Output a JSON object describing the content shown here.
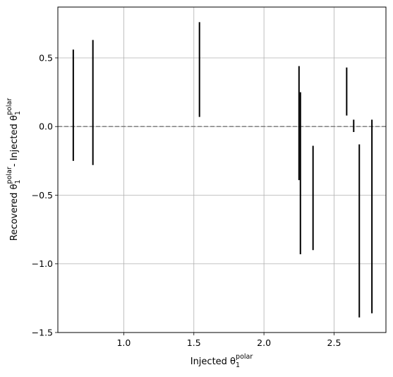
{
  "chart_data": {
    "type": "errorbar",
    "xlabel": {
      "main": "Injected θ",
      "sub": "1",
      "sup": "polar"
    },
    "ylabel": {
      "part1": "Recovered θ",
      "sub1": "1",
      "sup1": "polar",
      "part2": "- Injected θ",
      "sub2": "1",
      "sup2": "polar"
    },
    "xlim": [
      0.53,
      2.87
    ],
    "ylim": [
      -1.5,
      0.87
    ],
    "xticks": [
      1.0,
      1.5,
      2.0,
      2.5
    ],
    "xtick_labels": [
      "1.0",
      "1.5",
      "2.0",
      "2.5"
    ],
    "yticks": [
      -1.5,
      -1.0,
      -0.5,
      0.0,
      0.5
    ],
    "ytick_labels": [
      "−1.5",
      "−1.0",
      "−0.5",
      "0.0",
      "0.5"
    ],
    "grid": true,
    "reference_line": {
      "y": 0.0,
      "style": "dashed",
      "color": "#808080"
    },
    "bar_color": "#000000",
    "intervals": [
      {
        "x": 0.64,
        "low": -0.25,
        "high": 0.56
      },
      {
        "x": 0.78,
        "low": -0.28,
        "high": 0.63
      },
      {
        "x": 1.54,
        "low": 0.07,
        "high": 0.76
      },
      {
        "x": 2.25,
        "low": -0.39,
        "high": 0.44
      },
      {
        "x": 2.26,
        "low": -0.93,
        "high": 0.25
      },
      {
        "x": 2.35,
        "low": -0.9,
        "high": -0.14
      },
      {
        "x": 2.59,
        "low": 0.08,
        "high": 0.43
      },
      {
        "x": 2.64,
        "low": -0.04,
        "high": 0.05
      },
      {
        "x": 2.68,
        "low": -1.39,
        "high": -0.13
      },
      {
        "x": 2.77,
        "low": -1.36,
        "high": 0.05
      }
    ]
  }
}
